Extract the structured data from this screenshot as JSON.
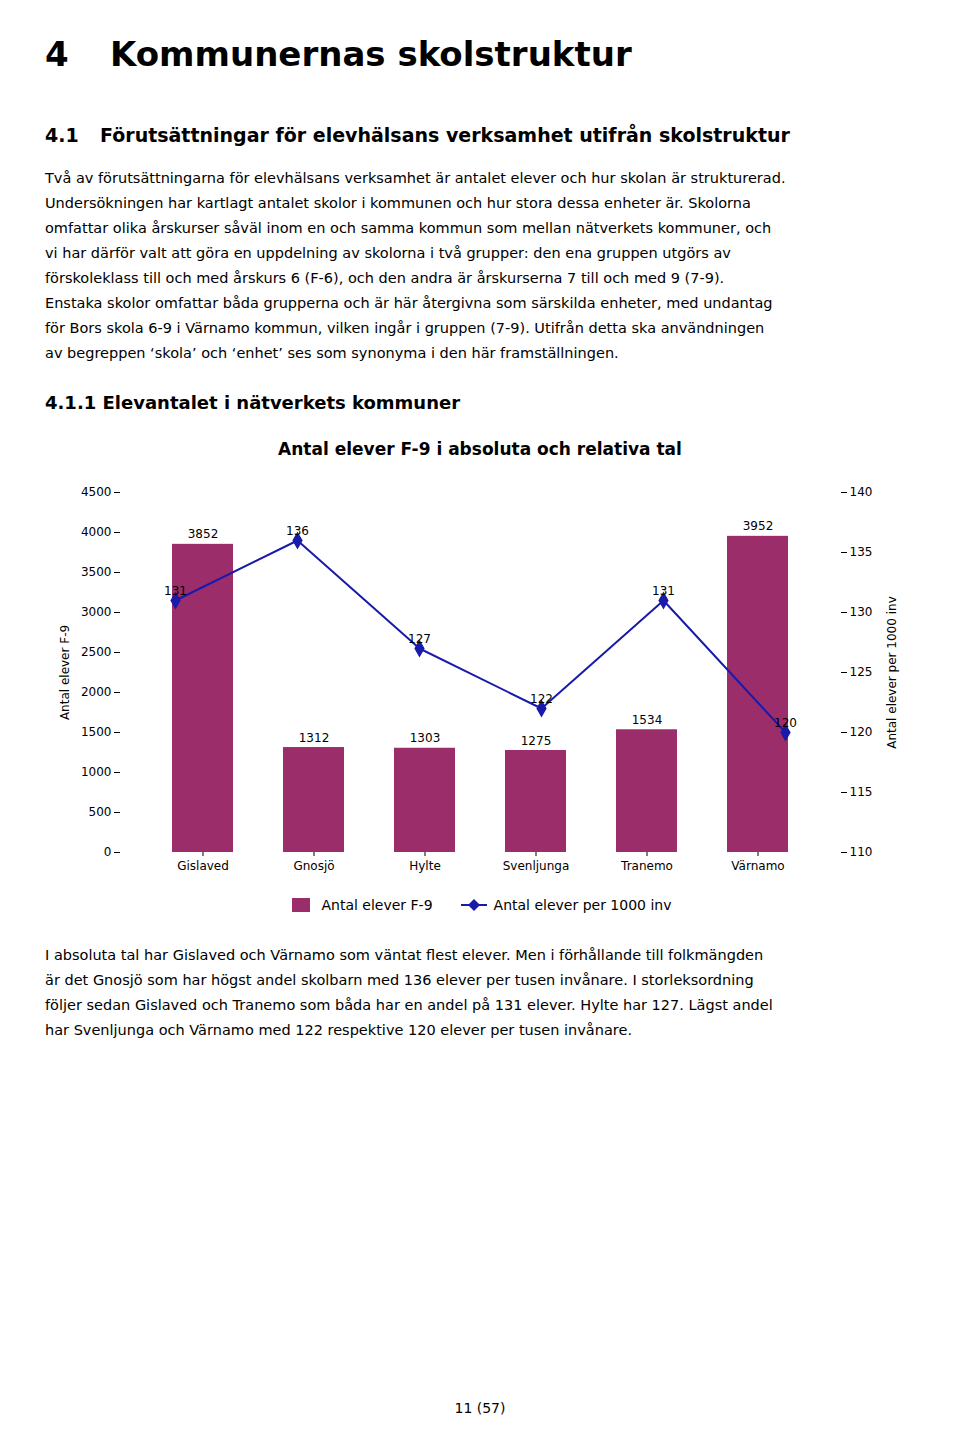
{
  "page_title_num": "4",
  "page_title_text": "Kommunernas skolstruktur",
  "section_num": "4.1",
  "section_text": "Förutsättningar för elevhälsans verksamhet utifrån skolstruktur",
  "body_text_1_lines": [
    "Två av förutsättningarna för elevhälsans verksamhet är antalet elever och hur skolan är strukturerad.",
    "Undersökningen har kartlagt antalet skolor i kommunen och hur stora dessa enheter är. Skolorna",
    "omfattar olika årskurser såväl inom en och samma kommun som mellan nätverkets kommuner, och",
    "vi har därför valt att göra en uppdelning av skolorna i två grupper: den ena gruppen utgörs av",
    "förskoleklass till och med årskurs 6 (F-6), och den andra är årskurserna 7 till och med 9 (7-9).",
    "Enstaka skolor omfattar båda grupperna och är här återgivna som särskilda enheter, med undantag",
    "för Bors skola 6-9 i Värnamo kommun, vilken ingår i gruppen (7-9). Utifrån detta ska användningen",
    "av begreppen ‘skola’ och ‘enhet’ ses som synonyma i den här framställningen."
  ],
  "subsection_title": "4.1.1 Elevantalet i nätverkets kommuner",
  "chart_data": {
    "type": "bar",
    "title": "Antal elever F-9 i absoluta och relativa tal",
    "categories": [
      "Gislaved",
      "Gnosjö",
      "Hylte",
      "Svenljunga",
      "Tranemo",
      "Värnamo"
    ],
    "series": [
      {
        "name": "Antal elever F-9",
        "type": "bar",
        "color": "#9B2D6B",
        "values": [
          3852,
          1312,
          1303,
          1275,
          1534,
          3952
        ]
      },
      {
        "name": "Antal elever per 1000 inv",
        "type": "line",
        "axis": "y2",
        "color": "#1a1aaa",
        "marker": "diamond",
        "values": [
          131,
          136,
          127,
          122,
          131,
          120
        ]
      }
    ],
    "ylabel": "Antal elever F-9",
    "y2label": "Antal elever per 1000 inv",
    "ylim": [
      0,
      4500
    ],
    "yticks": [
      0,
      500,
      1000,
      1500,
      2000,
      2500,
      3000,
      3500,
      4000,
      4500
    ],
    "y2lim": [
      110,
      140
    ],
    "y2ticks": [
      110,
      115,
      120,
      125,
      130,
      135,
      140
    ],
    "data_labels": true,
    "legend": "bottom"
  },
  "body_text_2_lines": [
    "I absoluta tal har Gislaved och Värnamo som väntat flest elever. Men i förhållande till folkmängden",
    "är det Gnosjö som har högst andel skolbarn med 136 elever per tusen invånare. I storleksordning",
    "följer sedan Gislaved och Tranemo som båda har en andel på 131 elever. Hylte har 127. Lägst andel",
    "har Svenljunga och Värnamo med 122 respektive 120 elever per tusen invånare."
  ],
  "footer": "11 (57)"
}
